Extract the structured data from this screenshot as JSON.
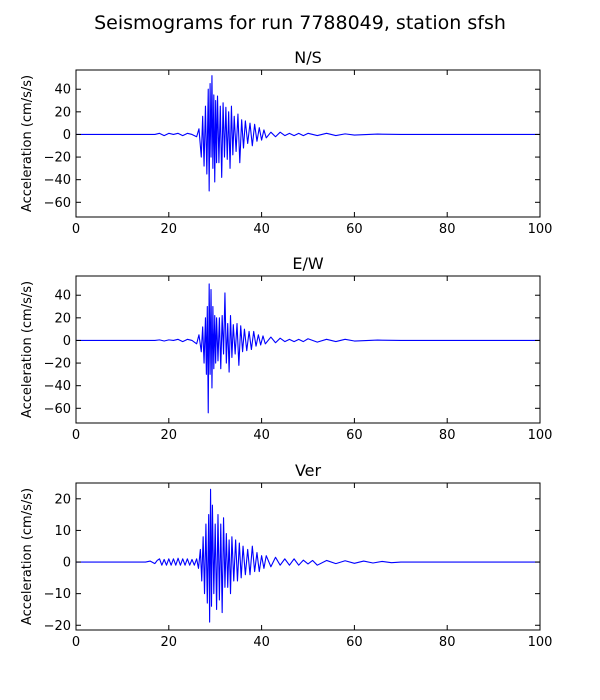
{
  "figure": {
    "title": "Seismograms for run 7788049, station sfsh"
  },
  "chart_data": [
    {
      "type": "line",
      "title": "N/S",
      "ylabel": "Acceleration (cm/s/s)",
      "xlabel": "",
      "xlim": [
        0,
        100
      ],
      "ylim": [
        -73,
        57
      ],
      "xticks": [
        0,
        20,
        40,
        60,
        80,
        100
      ],
      "yticks": [
        40,
        20,
        0,
        -20,
        -40,
        -60
      ],
      "grid": false,
      "line_color": "#0000ff",
      "series": [
        {
          "x": [
            0,
            17,
            18,
            19,
            20,
            21,
            22,
            23,
            24,
            25,
            26,
            26.5,
            27,
            27.3,
            27.6,
            27.9,
            28.2,
            28.5,
            28.7,
            28.9,
            29.1,
            29.3,
            29.5,
            29.7,
            29.9,
            30.1,
            30.3,
            30.5,
            30.8,
            31.1,
            31.4,
            31.7,
            32.0,
            32.3,
            32.6,
            32.9,
            33.2,
            33.5,
            33.8,
            34.1,
            34.5,
            34.9,
            35.3,
            35.7,
            36.1,
            36.5,
            37.0,
            37.5,
            38.0,
            38.5,
            39.0,
            39.5,
            40.0,
            40.5,
            41.0,
            42,
            43,
            44,
            45,
            46,
            47,
            48,
            49,
            50,
            52,
            54,
            56,
            58,
            60,
            65,
            70,
            100
          ],
          "y": [
            0,
            0,
            1,
            -1,
            1,
            0,
            1,
            -1,
            1,
            0,
            -2,
            5,
            -20,
            16,
            -28,
            25,
            -35,
            40,
            -50,
            45,
            -20,
            52,
            -30,
            35,
            -42,
            30,
            -25,
            34,
            -25,
            25,
            -38,
            28,
            -20,
            24,
            -22,
            20,
            -30,
            25,
            -18,
            16,
            -15,
            18,
            -25,
            13,
            -12,
            12,
            -8,
            10,
            -10,
            9,
            -6,
            6,
            -5,
            4,
            -3,
            2,
            -2,
            2,
            -1,
            1,
            -1,
            1,
            -1,
            1,
            -1,
            1,
            -1,
            0.5,
            -0.5,
            0.3,
            0,
            0
          ]
        }
      ]
    },
    {
      "type": "line",
      "title": "E/W",
      "ylabel": "Acceleration (cm/s/s)",
      "xlabel": "",
      "xlim": [
        0,
        100
      ],
      "ylim": [
        -73,
        57
      ],
      "xticks": [
        0,
        20,
        40,
        60,
        80,
        100
      ],
      "yticks": [
        40,
        20,
        0,
        -20,
        -40,
        -60
      ],
      "grid": false,
      "line_color": "#0000ff",
      "series": [
        {
          "x": [
            0,
            17,
            18,
            19,
            20,
            21,
            22,
            23,
            24,
            25,
            26,
            26.5,
            27,
            27.3,
            27.6,
            27.9,
            28.1,
            28.3,
            28.5,
            28.7,
            28.9,
            29.1,
            29.3,
            29.5,
            29.7,
            29.9,
            30.1,
            30.3,
            30.6,
            30.9,
            31.2,
            31.5,
            31.8,
            32.1,
            32.4,
            32.7,
            33.0,
            33.3,
            33.6,
            33.9,
            34.3,
            34.7,
            35.1,
            35.5,
            35.9,
            36.3,
            36.8,
            37.3,
            37.8,
            38.3,
            38.8,
            39.3,
            39.8,
            40.3,
            40.8,
            42,
            43,
            44,
            45,
            46,
            47,
            48,
            49,
            50,
            52,
            54,
            56,
            58,
            60,
            65,
            70,
            100
          ],
          "y": [
            0,
            0,
            0.5,
            -0.5,
            0.5,
            0,
            1,
            -1,
            1,
            0,
            -3,
            5,
            -10,
            12,
            -20,
            20,
            -30,
            30,
            -64,
            50,
            -30,
            45,
            -42,
            30,
            -25,
            22,
            -20,
            20,
            -18,
            20,
            -25,
            22,
            -12,
            42,
            -20,
            15,
            -28,
            22,
            -15,
            14,
            -12,
            15,
            -22,
            13,
            -10,
            10,
            -9,
            8,
            -8,
            8,
            -5,
            5,
            -4,
            4,
            -3,
            3,
            -2,
            2,
            -1,
            1,
            -1,
            1,
            -1,
            1.5,
            -1.5,
            1,
            -1,
            1,
            -0.5,
            0.3,
            0,
            0
          ]
        }
      ]
    },
    {
      "type": "line",
      "title": "Ver",
      "ylabel": "Acceleration (cm/s/s)",
      "xlabel": "",
      "xlim": [
        0,
        100
      ],
      "ylim": [
        -21.5,
        25
      ],
      "xticks": [
        0,
        20,
        40,
        60,
        80,
        100
      ],
      "yticks": [
        20,
        10,
        0,
        -10,
        -20
      ],
      "grid": false,
      "line_color": "#0000ff",
      "series": [
        {
          "x": [
            0,
            15,
            16,
            17,
            17.5,
            18,
            18.5,
            19,
            19.5,
            20,
            20.5,
            21,
            21.5,
            22,
            22.5,
            23,
            23.5,
            24,
            24.5,
            25,
            25.5,
            26,
            26.4,
            26.8,
            27.1,
            27.4,
            27.7,
            28.0,
            28.3,
            28.6,
            28.8,
            29.0,
            29.2,
            29.4,
            29.7,
            30.0,
            30.3,
            30.6,
            30.9,
            31.2,
            31.5,
            31.8,
            32.1,
            32.4,
            32.7,
            33.0,
            33.3,
            33.6,
            34.0,
            34.4,
            34.8,
            35.2,
            35.6,
            36.0,
            36.5,
            37.0,
            37.5,
            38.0,
            38.5,
            39.0,
            39.5,
            40.0,
            40.5,
            41.0,
            42,
            43,
            44,
            45,
            46,
            47,
            48,
            49,
            50,
            51,
            52,
            54,
            56,
            58,
            60,
            62,
            64,
            66,
            68,
            70,
            100
          ],
          "y": [
            0,
            0,
            0.3,
            -0.5,
            0.5,
            1,
            -1,
            0.8,
            -1,
            1,
            -1,
            1,
            -1,
            1.2,
            -1,
            1,
            -1,
            1,
            -1,
            0.8,
            -1,
            1,
            -2,
            4,
            -6,
            8,
            -10,
            12,
            -13,
            15,
            -19,
            23,
            -14,
            18,
            -10,
            12,
            -15,
            15,
            -12,
            12,
            -16,
            14,
            -8,
            9,
            -8,
            7,
            -10,
            8,
            -6,
            7,
            -6,
            6,
            -5,
            5,
            -4,
            4,
            -4,
            5,
            -3,
            3,
            -3,
            2,
            -2,
            2,
            -1.5,
            1.5,
            -1,
            1,
            -1,
            1,
            -1,
            0.6,
            -0.6,
            0.5,
            -1,
            0.5,
            -0.5,
            0.4,
            -0.4,
            0.3,
            -0.3,
            0.2,
            -0.2,
            0,
            0
          ]
        }
      ]
    }
  ]
}
